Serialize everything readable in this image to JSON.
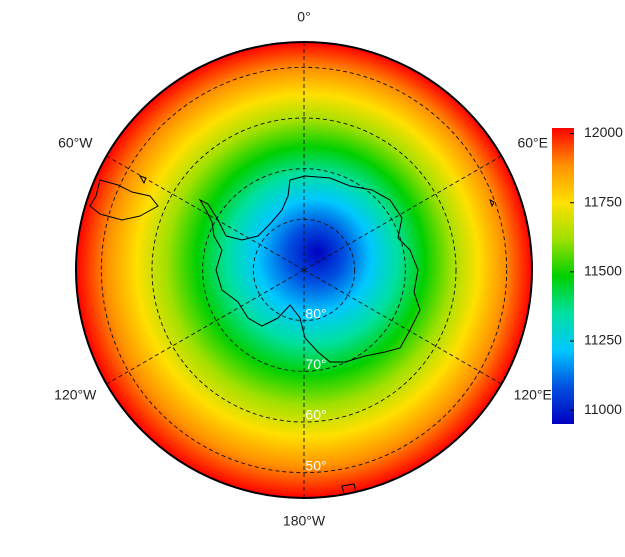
{
  "map": {
    "type": "polar-map",
    "projection": "south-polar",
    "latlim": [
      -90,
      -45
    ],
    "meridians": [
      {
        "value": 0,
        "label": "0°"
      },
      {
        "value": -60,
        "label": "60°W"
      },
      {
        "value": 60,
        "label": "60°E"
      },
      {
        "value": -120,
        "label": "120°W"
      },
      {
        "value": 120,
        "label": "120°E"
      },
      {
        "value": 180,
        "label": "180°W"
      }
    ],
    "parallels": [
      {
        "value": -80,
        "label": "80°"
      },
      {
        "value": -70,
        "label": "70°"
      },
      {
        "value": -60,
        "label": "60°"
      },
      {
        "value": -50,
        "label": "50°"
      }
    ],
    "colorbar": {
      "lim": [
        10950,
        12020
      ],
      "ticks": [
        11000,
        11250,
        11500,
        11750,
        12000
      ],
      "colormap": [
        "#0000c0",
        "#0050e0",
        "#00c8ff",
        "#00e0a0",
        "#00d000",
        "#a0e000",
        "#ffe000",
        "#ff9000",
        "#ff0000"
      ]
    }
  }
}
